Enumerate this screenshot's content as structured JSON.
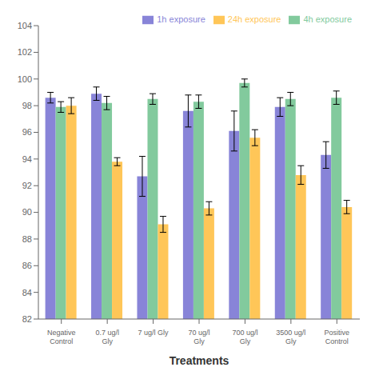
{
  "chart_data": {
    "type": "bar",
    "xlabel": "Treatments",
    "categories": [
      "Negative\nControl",
      "0.7 ug/l Gly",
      "7 ug/l Gly",
      "70 ug/l Gly",
      "700 ug/l Gly",
      "3500 ug/l Gly",
      "Positive\nControl"
    ],
    "series": [
      {
        "name": "1h exposure",
        "color": "#8884d8",
        "values": [
          98.6,
          98.9,
          92.7,
          97.6,
          96.1,
          97.9,
          94.3
        ],
        "errors": [
          0.4,
          0.5,
          1.5,
          1.2,
          1.5,
          0.7,
          1.0
        ]
      },
      {
        "name": "4h exposure",
        "color": "#82ca9d",
        "values": [
          97.9,
          98.2,
          98.5,
          98.3,
          99.7,
          98.5,
          98.6
        ],
        "errors": [
          0.4,
          0.5,
          0.4,
          0.5,
          0.3,
          0.5,
          0.5
        ]
      },
      {
        "name": "24h exposure",
        "color": "#ffc658",
        "values": [
          98.0,
          93.8,
          89.1,
          90.3,
          95.6,
          92.8,
          90.4
        ],
        "errors": [
          0.6,
          0.3,
          0.6,
          0.5,
          0.6,
          0.7,
          0.5
        ]
      }
    ],
    "ylim": [
      82,
      104
    ],
    "yticks": [
      82,
      84,
      86,
      88,
      90,
      92,
      94,
      96,
      98,
      100,
      102,
      104
    ],
    "grid": false,
    "legend": "upper right"
  }
}
